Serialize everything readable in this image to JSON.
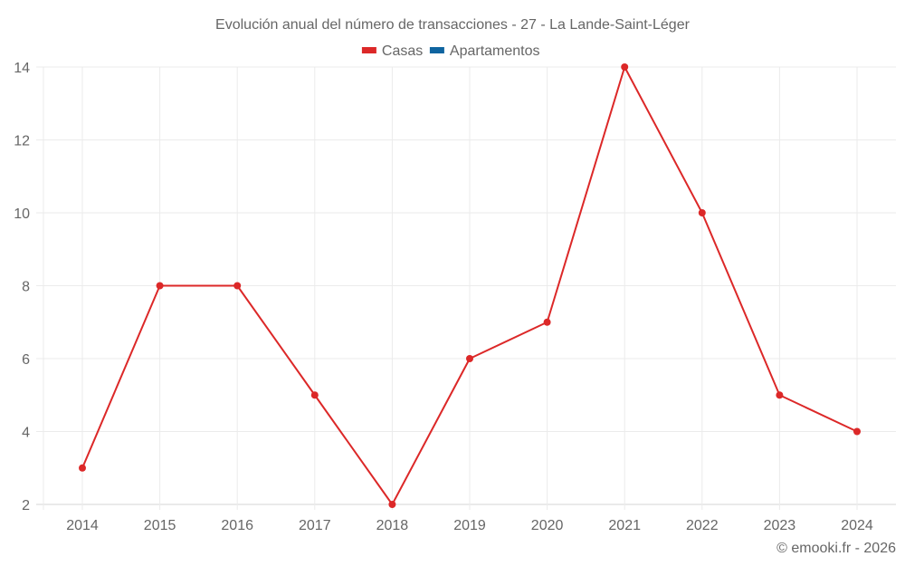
{
  "chart_data": {
    "type": "line",
    "title": "Evolución anual del número de transacciones - 27 - La Lande-Saint-Léger",
    "categories": [
      "2014",
      "2015",
      "2016",
      "2017",
      "2018",
      "2019",
      "2020",
      "2021",
      "2022",
      "2023",
      "2024"
    ],
    "series": [
      {
        "name": "Casas",
        "color": "#dc2828",
        "values": [
          3,
          8,
          8,
          5,
          2,
          6,
          7,
          14,
          10,
          5,
          4
        ]
      },
      {
        "name": "Apartamentos",
        "color": "#0f64a0",
        "values": []
      }
    ],
    "xlabel": "",
    "ylabel": "",
    "ylim": [
      2,
      14
    ],
    "yticks": [
      2,
      4,
      6,
      8,
      10,
      12,
      14
    ],
    "grid": true,
    "legend_position": "top"
  },
  "footer": "© emooki.fr - 2026"
}
